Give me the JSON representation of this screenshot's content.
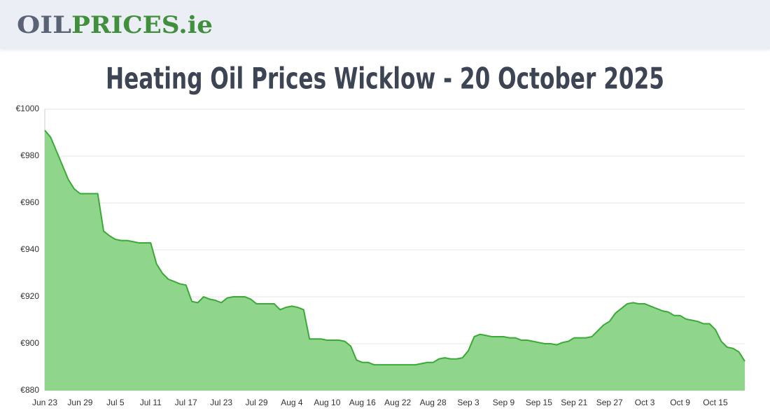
{
  "header": {
    "logo_part1": "OIL",
    "logo_part2": "PRICES.ie"
  },
  "chart_data": {
    "type": "area",
    "title": "Heating Oil Prices Wicklow - 20 October 2025",
    "color": "#3aaa35",
    "fill": "#8fd68c",
    "grid": true,
    "ylim": [
      880,
      1000
    ],
    "yticks": [
      {
        "value": 880,
        "label": "€880"
      },
      {
        "value": 900,
        "label": "€900"
      },
      {
        "value": 920,
        "label": "€920"
      },
      {
        "value": 940,
        "label": "€940"
      },
      {
        "value": 960,
        "label": "€960"
      },
      {
        "value": 980,
        "label": "€980"
      },
      {
        "value": 1000,
        "label": "€1000"
      }
    ],
    "categories": [
      "Jun 23",
      null,
      null,
      null,
      null,
      null,
      "Jun 29",
      null,
      null,
      null,
      null,
      null,
      "Jul 5",
      null,
      null,
      null,
      null,
      null,
      "Jul 11",
      null,
      null,
      null,
      null,
      null,
      "Jul 17",
      null,
      null,
      null,
      null,
      null,
      "Jul 23",
      null,
      null,
      null,
      null,
      null,
      "Jul 29",
      null,
      null,
      null,
      null,
      null,
      "Aug 4",
      null,
      null,
      null,
      null,
      null,
      "Aug 10",
      null,
      null,
      null,
      null,
      null,
      "Aug 16",
      null,
      null,
      null,
      null,
      null,
      "Aug 22",
      null,
      null,
      null,
      null,
      null,
      "Aug 28",
      null,
      null,
      null,
      null,
      null,
      "Sep 3",
      null,
      null,
      null,
      null,
      null,
      "Sep 9",
      null,
      null,
      null,
      null,
      null,
      "Sep 15",
      null,
      null,
      null,
      null,
      null,
      "Sep 21",
      null,
      null,
      null,
      null,
      null,
      "Sep 27",
      null,
      null,
      null,
      null,
      null,
      "Oct 3",
      null,
      null,
      null,
      null,
      null,
      "Oct 9",
      null,
      null,
      null,
      null,
      null,
      "Oct 15",
      null,
      null,
      null,
      null,
      null
    ],
    "values": [
      991,
      988,
      982,
      976,
      970,
      966,
      964,
      964,
      964,
      964,
      948,
      946,
      944.5,
      944,
      944,
      943.5,
      943,
      943,
      943,
      934,
      930,
      927.5,
      926.5,
      925.5,
      925,
      918,
      917.5,
      920,
      919,
      918.5,
      917.5,
      919.5,
      920,
      920,
      920,
      919,
      917,
      917,
      917,
      917,
      914.5,
      915.5,
      916,
      915.5,
      914.5,
      902,
      902,
      902,
      901.5,
      901.5,
      901.5,
      901,
      899,
      893,
      892,
      892,
      891,
      891,
      891,
      891,
      891,
      891,
      891,
      891,
      891.5,
      892,
      892,
      893.5,
      894,
      893.5,
      893.5,
      894,
      897,
      903,
      904,
      903.5,
      903,
      903,
      903,
      902.5,
      902.5,
      901.5,
      901.5,
      901,
      900.5,
      900,
      900,
      899.5,
      900.5,
      901,
      902.5,
      902.5,
      902.5,
      903,
      905.5,
      908,
      909.5,
      913,
      915,
      917,
      917.5,
      917,
      917,
      916,
      915,
      914,
      913.5,
      912,
      912,
      910.5,
      910,
      909.5,
      908.5,
      908.5,
      906,
      901,
      898.5,
      898,
      896.5,
      892.5
    ]
  }
}
